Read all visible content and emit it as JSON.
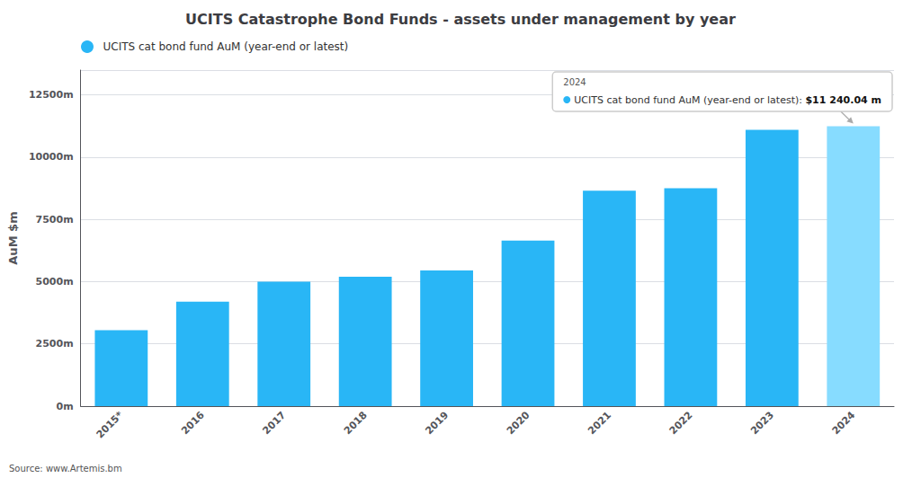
{
  "chart_data": {
    "type": "bar",
    "title": "UCITS Catastrophe Bond Funds - assets under management by year",
    "ylabel": "AuM $m",
    "source": "Source: www.Artemis.bm",
    "categories": [
      "2015*",
      "2016",
      "2017",
      "2018",
      "2019",
      "2020",
      "2021",
      "2022",
      "2023",
      "2024"
    ],
    "series": [
      {
        "name": "UCITS cat bond fund AuM (year-end or latest)",
        "color": "#29b6f6",
        "colors": [
          "#29b6f6",
          "#29b6f6",
          "#29b6f6",
          "#29b6f6",
          "#29b6f6",
          "#29b6f6",
          "#29b6f6",
          "#29b6f6",
          "#29b6f6",
          "#87DCFF"
        ],
        "values": [
          3050,
          4200,
          5000,
          5200,
          5450,
          6650,
          8650,
          8750,
          11100,
          11240
        ]
      }
    ],
    "ylim": [
      0,
      13500
    ],
    "yticks": [
      {
        "value": 0,
        "label": "0m"
      },
      {
        "value": 2500,
        "label": "2500m"
      },
      {
        "value": 5000,
        "label": "5000m"
      },
      {
        "value": 7500,
        "label": "7500m"
      },
      {
        "value": 10000,
        "label": "10000m"
      },
      {
        "value": 12500,
        "label": "12500m"
      }
    ],
    "grid": true,
    "legend": "upper left",
    "annotations": [
      {
        "category": "2024",
        "title": "2024",
        "label": "UCITS cat bond fund AuM (year-end or latest): ",
        "value": "$11 240.04 m"
      }
    ]
  }
}
